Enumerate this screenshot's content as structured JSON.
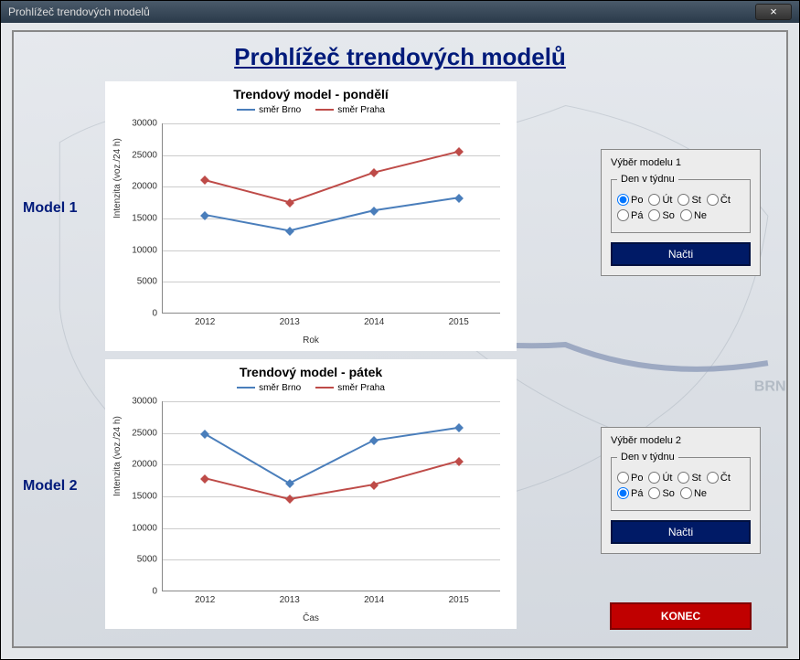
{
  "window": {
    "title": "Prohlížeč trendových modelů"
  },
  "main_title": "Prohlížeč trendových modelů",
  "labels": {
    "model1": "Model 1",
    "model2": "Model 2"
  },
  "chart1": {
    "type": "line",
    "title": "Trendový model - pondělí",
    "ylabel": "Intenzita (voz./24 h)",
    "xlabel": "Rok",
    "ylim": [
      0,
      30000
    ],
    "ytick_step": 5000,
    "categories": [
      "2012",
      "2013",
      "2014",
      "2015"
    ],
    "background_color": "#ffffff",
    "grid_color": "#cccccc",
    "title_fontsize": 14,
    "label_fontsize": 10,
    "series": [
      {
        "name": "směr Brno",
        "color": "#4a7ebb",
        "values": [
          15500,
          13000,
          16200,
          18200
        ],
        "marker": "diamond"
      },
      {
        "name": "směr Praha",
        "color": "#be4b48",
        "values": [
          21000,
          17500,
          22200,
          25500
        ],
        "marker": "diamond"
      }
    ]
  },
  "chart2": {
    "type": "line",
    "title": "Trendový model - pátek",
    "ylabel": "Intenzita (voz./24 h)",
    "xlabel": "Čas",
    "ylim": [
      0,
      30000
    ],
    "ytick_step": 5000,
    "categories": [
      "2012",
      "2013",
      "2014",
      "2015"
    ],
    "background_color": "#ffffff",
    "grid_color": "#cccccc",
    "title_fontsize": 14,
    "label_fontsize": 10,
    "series": [
      {
        "name": "směr Brno",
        "color": "#4a7ebb",
        "values": [
          24800,
          17000,
          23800,
          25800
        ],
        "marker": "diamond"
      },
      {
        "name": "směr Praha",
        "color": "#be4b48",
        "values": [
          17800,
          14500,
          16800,
          20500
        ],
        "marker": "diamond"
      }
    ]
  },
  "panel1": {
    "title": "Výběr modelu 1",
    "group_label": "Den v týdnu",
    "options": [
      "Po",
      "Út",
      "St",
      "Čt",
      "Pá",
      "So",
      "Ne"
    ],
    "selected": "Po",
    "button": "Načti"
  },
  "panel2": {
    "title": "Výběr modelu 2",
    "group_label": "Den v týdnu",
    "options": [
      "Po",
      "Út",
      "St",
      "Čt",
      "Pá",
      "So",
      "Ne"
    ],
    "selected": "Pá",
    "button": "Načti"
  },
  "end_button": "KONEC",
  "colors": {
    "accent_dark_blue": "#001a66",
    "danger_red": "#c00000",
    "title_blue": "#001a7a"
  }
}
